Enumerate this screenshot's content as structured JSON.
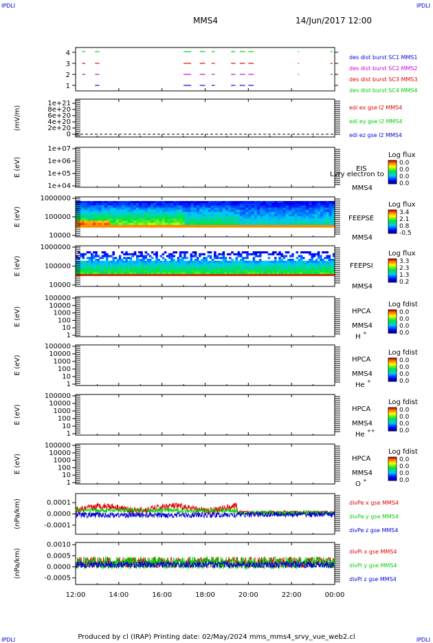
{
  "corners": {
    "tl": "IPDLI",
    "tr": "IPDLI",
    "bl": "IPDLI",
    "br": "IPDLI"
  },
  "header": {
    "title": "MMS4",
    "datetime": "14/Jun/2017 12:00"
  },
  "footer": "Produced by cl (IRAP)   Printing date: 02/May/2024   mms_mms4_srvy_vue_web2.cl",
  "colors": {
    "red": "#e00000",
    "green": "#00d000",
    "blue": "#0000e0",
    "magenta": "#d000d0",
    "frame": "#000000"
  },
  "chart_data": [
    {
      "type": "scatter",
      "name": "burst-intervals",
      "yticks": [
        "1",
        "2",
        "3",
        "4"
      ],
      "ylim": [
        0.5,
        4.5
      ],
      "legend": [
        {
          "text": "des dist burst SC1 MMS1",
          "color": "#0000e0"
        },
        {
          "text": "des dist burst SC2 MMS2",
          "color": "#d000d0"
        },
        {
          "text": "des dist burst SC3 MMS3",
          "color": "#e00000"
        },
        {
          "text": "des dist burst SC4 MMS4",
          "color": "#00d000"
        }
      ],
      "intervals_hours": [
        [
          12.3,
          12.45
        ],
        [
          12.9,
          13.1
        ],
        [
          17.0,
          17.35
        ],
        [
          17.75,
          18.0
        ],
        [
          18.3,
          18.45
        ],
        [
          19.2,
          19.4
        ],
        [
          19.6,
          19.85
        ],
        [
          20.0,
          20.25
        ],
        [
          22.3,
          22.35
        ],
        [
          23.8,
          23.9
        ]
      ]
    },
    {
      "type": "line",
      "name": "edi-e-field",
      "ylabel": "(mV/m)",
      "yticks": [
        "0",
        "2e+20",
        "4e+20",
        "6e+20",
        "8e+20",
        "1e+21"
      ],
      "ylim": [
        0,
        1e+21
      ],
      "legend": [
        {
          "text": "edi ex gse l2 MMS4",
          "color": "#e00000"
        },
        {
          "text": "edi ey gse l2 MMS4",
          "color": "#00d000"
        },
        {
          "text": "edi ez gse l2 MMS4",
          "color": "#0000e0"
        }
      ]
    },
    {
      "type": "heatmap",
      "name": "eis",
      "ylabel": "E (eV)",
      "yticks": [
        "1e+04",
        "1e+05",
        "1e+06",
        "1e+07"
      ],
      "instrument": "EIS",
      "spacecraft": "MMS4",
      "overlay_text": "Lvry electron to",
      "colorbar": {
        "title": "Log flux",
        "ticks": [
          "0.0",
          "0.0",
          "0.0",
          "0.0"
        ]
      }
    },
    {
      "type": "heatmap",
      "name": "feeps-electron",
      "ylabel": "E (eV)",
      "yticks": [
        "10000",
        "100000",
        "1000000"
      ],
      "instrument": "FEEPSE",
      "spacecraft": "MMS4",
      "colorbar": {
        "title": "Log flux",
        "ticks": [
          "3.4",
          "2.1",
          "0.8",
          "-0.5"
        ]
      }
    },
    {
      "type": "heatmap",
      "name": "feeps-ion",
      "ylabel": "E (eV)",
      "yticks": [
        "10000",
        "100000",
        "1000000"
      ],
      "instrument": "FEEPSI",
      "spacecraft": "MMS4",
      "colorbar": {
        "title": "Log flux",
        "ticks": [
          "3.3",
          "2.3",
          "1.3",
          "0.2"
        ]
      }
    },
    {
      "type": "heatmap",
      "name": "hpca-h",
      "ylabel": "E (eV)",
      "yticks": [
        "1",
        "10",
        "100",
        "1000",
        "10000",
        "100000"
      ],
      "instrument": "HPCA",
      "spacecraft": "MMS4",
      "species": "H",
      "charge": "+",
      "colorbar": {
        "title": "Log fdist",
        "ticks": [
          "0.0",
          "0.0",
          "0.0",
          "0.0"
        ]
      }
    },
    {
      "type": "heatmap",
      "name": "hpca-he1",
      "ylabel": "E (eV)",
      "yticks": [
        "1",
        "10",
        "100",
        "1000",
        "10000",
        "100000"
      ],
      "instrument": "HPCA",
      "spacecraft": "MMS4",
      "species": "He",
      "charge": "+",
      "colorbar": {
        "title": "Log fdist",
        "ticks": [
          "0.0",
          "0.0",
          "0.0",
          "0.0"
        ]
      }
    },
    {
      "type": "heatmap",
      "name": "hpca-he2",
      "ylabel": "E (eV)",
      "yticks": [
        "1",
        "10",
        "100",
        "1000",
        "10000",
        "100000"
      ],
      "instrument": "HPCA",
      "spacecraft": "MMS4",
      "species": "He",
      "charge": "++",
      "colorbar": {
        "title": "Log fdist",
        "ticks": [
          "0.0",
          "0.0",
          "0.0",
          "0.0"
        ]
      }
    },
    {
      "type": "heatmap",
      "name": "hpca-o",
      "ylabel": "E (eV)",
      "yticks": [
        "1",
        "10",
        "100",
        "1000",
        "10000",
        "100000"
      ],
      "instrument": "HPCA",
      "spacecraft": "MMS4",
      "species": "O",
      "charge": "+",
      "colorbar": {
        "title": "Log fdist",
        "ticks": [
          "0.0",
          "0.0",
          "0.0",
          "0.0"
        ]
      }
    },
    {
      "type": "line",
      "name": "divpe",
      "ylabel": "(nPa/km)",
      "yticks": [
        "-0.0001",
        "0.0000",
        "0.0001"
      ],
      "ylim": [
        -0.00018,
        0.00018
      ],
      "legend": [
        {
          "text": "divPe x gse MMS4",
          "color": "#e00000"
        },
        {
          "text": "divPe y gse MMS4",
          "color": "#00d000"
        },
        {
          "text": "divPe z gse MMS4",
          "color": "#0000e0"
        }
      ]
    },
    {
      "type": "line",
      "name": "divpi",
      "ylabel": "(nPa/km)",
      "yticks": [
        "-0.0005",
        "0.0000",
        "0.0005",
        "0.0010"
      ],
      "ylim": [
        -0.0008,
        0.0011
      ],
      "legend": [
        {
          "text": "divPi x gse MMS4",
          "color": "#e00000"
        },
        {
          "text": "divPi y gse MMS4",
          "color": "#00d000"
        },
        {
          "text": "divPi z gse MMS4",
          "color": "#0000e0"
        }
      ]
    }
  ],
  "xaxis": {
    "ticks": [
      "12:00",
      "14:00",
      "16:00",
      "18:00",
      "20:00",
      "22:00",
      "00:00"
    ],
    "range_hours": [
      12,
      24
    ]
  }
}
